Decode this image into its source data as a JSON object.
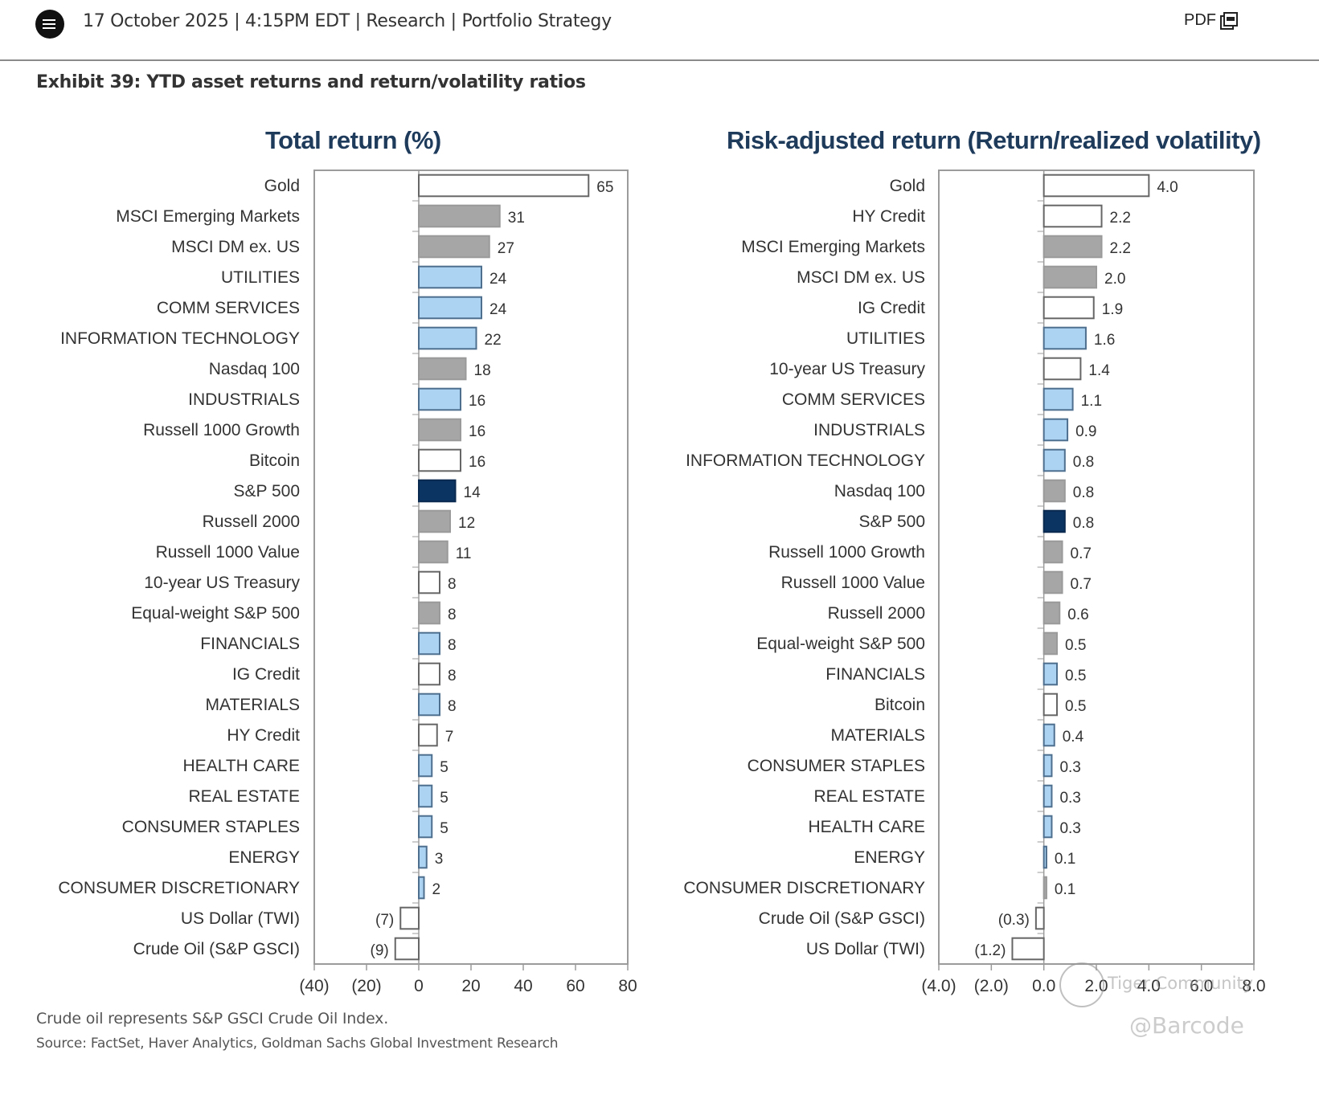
{
  "header": {
    "meta": "17 October 2025 | 4:15PM EDT | Research | Portfolio Strategy",
    "pdf_label": "PDF",
    "menu_icon": "hamburger-menu-icon",
    "pdf_icon": "pdf-document-icon"
  },
  "exhibit_title": "Exhibit 39: YTD asset returns and return/volatility ratios",
  "colors": {
    "white": "#ffffff",
    "gray": "#a6a6a6",
    "lightblue": "#acd3f2",
    "navy": "#0b3463",
    "title": "#1f3b5c"
  },
  "chart_data": [
    {
      "type": "bar",
      "orientation": "horizontal",
      "title": "Total return (%)",
      "xlabel": "",
      "ylabel": "",
      "xlim": [
        -40,
        80
      ],
      "xticks": [
        -40,
        -20,
        0,
        20,
        40,
        60,
        80
      ],
      "xtick_labels": [
        "(40)",
        "(20)",
        "0",
        "20",
        "40",
        "60",
        "80"
      ],
      "grid": false,
      "categories": [
        "Gold",
        "MSCI Emerging Markets",
        "MSCI DM ex. US",
        "UTILITIES",
        "COMM SERVICES",
        "INFORMATION TECHNOLOGY",
        "Nasdaq 100",
        "INDUSTRIALS",
        "Russell 1000 Growth",
        "Bitcoin",
        "S&P 500",
        "Russell 2000",
        "Russell 1000 Value",
        "10-year US Treasury",
        "Equal-weight S&P 500",
        "FINANCIALS",
        "IG Credit",
        "MATERIALS",
        "HY Credit",
        "HEALTH CARE",
        "REAL ESTATE",
        "CONSUMER STAPLES",
        "ENERGY",
        "CONSUMER DISCRETIONARY",
        "US Dollar (TWI)",
        "Crude Oil (S&P GSCI)"
      ],
      "values": [
        65,
        31,
        27,
        24,
        24,
        22,
        18,
        16,
        16,
        16,
        14,
        12,
        11,
        8,
        8,
        8,
        8,
        8,
        7,
        5,
        5,
        5,
        3,
        2,
        -7,
        -9
      ],
      "value_labels": [
        "65",
        "31",
        "27",
        "24",
        "24",
        "22",
        "18",
        "16",
        "16",
        "16",
        "14",
        "12",
        "11",
        "8",
        "8",
        "8",
        "8",
        "8",
        "7",
        "5",
        "5",
        "5",
        "3",
        "2",
        "(7)",
        "(9)"
      ],
      "groups": [
        "white",
        "gray",
        "gray",
        "lightblue",
        "lightblue",
        "lightblue",
        "gray",
        "lightblue",
        "gray",
        "white",
        "navy",
        "gray",
        "gray",
        "white",
        "gray",
        "lightblue",
        "white",
        "lightblue",
        "white",
        "lightblue",
        "lightblue",
        "lightblue",
        "lightblue",
        "lightblue",
        "white",
        "white"
      ]
    },
    {
      "type": "bar",
      "orientation": "horizontal",
      "title": "Risk-adjusted return (Return/realized volatility)",
      "xlabel": "",
      "ylabel": "",
      "xlim": [
        -4,
        8
      ],
      "xticks": [
        -4,
        -2,
        0,
        2,
        4,
        6,
        8
      ],
      "xtick_labels": [
        "(4.0)",
        "(2.0)",
        "0.0",
        "2.0",
        "4.0",
        "6.0",
        "8.0"
      ],
      "grid": false,
      "categories": [
        "Gold",
        "HY Credit",
        "MSCI Emerging Markets",
        "MSCI DM ex. US",
        "IG Credit",
        "UTILITIES",
        "10-year US Treasury",
        "COMM SERVICES",
        "INDUSTRIALS",
        "INFORMATION TECHNOLOGY",
        "Nasdaq 100",
        "S&P 500",
        "Russell 1000 Growth",
        "Russell 1000 Value",
        "Russell 2000",
        "Equal-weight S&P 500",
        "FINANCIALS",
        "Bitcoin",
        "MATERIALS",
        "CONSUMER STAPLES",
        "REAL ESTATE",
        "HEALTH CARE",
        "ENERGY",
        "CONSUMER DISCRETIONARY",
        "Crude Oil (S&P GSCI)",
        "US Dollar (TWI)"
      ],
      "values": [
        4.0,
        2.2,
        2.2,
        2.0,
        1.9,
        1.6,
        1.4,
        1.1,
        0.9,
        0.8,
        0.8,
        0.8,
        0.7,
        0.7,
        0.6,
        0.5,
        0.5,
        0.5,
        0.4,
        0.3,
        0.3,
        0.3,
        0.1,
        0.1,
        -0.3,
        -1.2
      ],
      "value_labels": [
        "4.0",
        "2.2",
        "2.2",
        "2.0",
        "1.9",
        "1.6",
        "1.4",
        "1.1",
        "0.9",
        "0.8",
        "0.8",
        "0.8",
        "0.7",
        "0.7",
        "0.6",
        "0.5",
        "0.5",
        "0.5",
        "0.4",
        "0.3",
        "0.3",
        "0.3",
        "0.1",
        "0.1",
        "(0.3)",
        "(1.2)"
      ],
      "groups": [
        "white",
        "white",
        "gray",
        "gray",
        "white",
        "lightblue",
        "white",
        "lightblue",
        "lightblue",
        "lightblue",
        "gray",
        "navy",
        "gray",
        "gray",
        "gray",
        "gray",
        "lightblue",
        "white",
        "lightblue",
        "lightblue",
        "lightblue",
        "lightblue",
        "lightblue",
        "gray",
        "white",
        "white"
      ]
    }
  ],
  "footnotes": {
    "note": "Crude oil represents S&P GSCI Crude Oil Index.",
    "source": "Source: FactSet, Haver Analytics, Goldman Sachs Global Investment Research"
  },
  "watermarks": {
    "community": "Tiger Community",
    "handle": "@Barcode"
  }
}
